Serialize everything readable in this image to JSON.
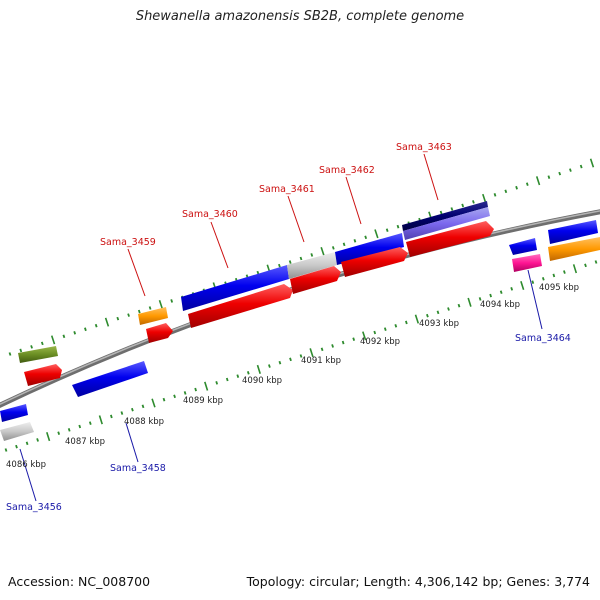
{
  "header": {
    "title": "Shewanella amazonensis SB2B, complete genome"
  },
  "footer": {
    "accession": "Accession: NC_008700",
    "summary": "Topology: circular; Length: 4,306,142 bp; Genes: 3,774"
  },
  "colors": {
    "backbone": "#8a8a8a",
    "tick_marks": "#2e8b2e",
    "label_forward": "#cc1111",
    "label_reverse": "#1a1aa8"
  },
  "scale": {
    "unit": "kbp",
    "labels": [
      "4086 kbp",
      "4087 kbp",
      "4088 kbp",
      "4089 kbp",
      "4090 kbp",
      "4091 kbp",
      "4092 kbp",
      "4093 kbp",
      "4094 kbp",
      "4095 kbp"
    ]
  },
  "gene_labels": [
    {
      "text": "Sama_3456",
      "strand": "reverse"
    },
    {
      "text": "Sama_3458",
      "strand": "reverse"
    },
    {
      "text": "Sama_3459",
      "strand": "forward"
    },
    {
      "text": "Sama_3460",
      "strand": "forward"
    },
    {
      "text": "Sama_3461",
      "strand": "forward"
    },
    {
      "text": "Sama_3462",
      "strand": "forward"
    },
    {
      "text": "Sama_3463",
      "strand": "forward"
    },
    {
      "text": "Sama_3464",
      "strand": "reverse"
    }
  ]
}
